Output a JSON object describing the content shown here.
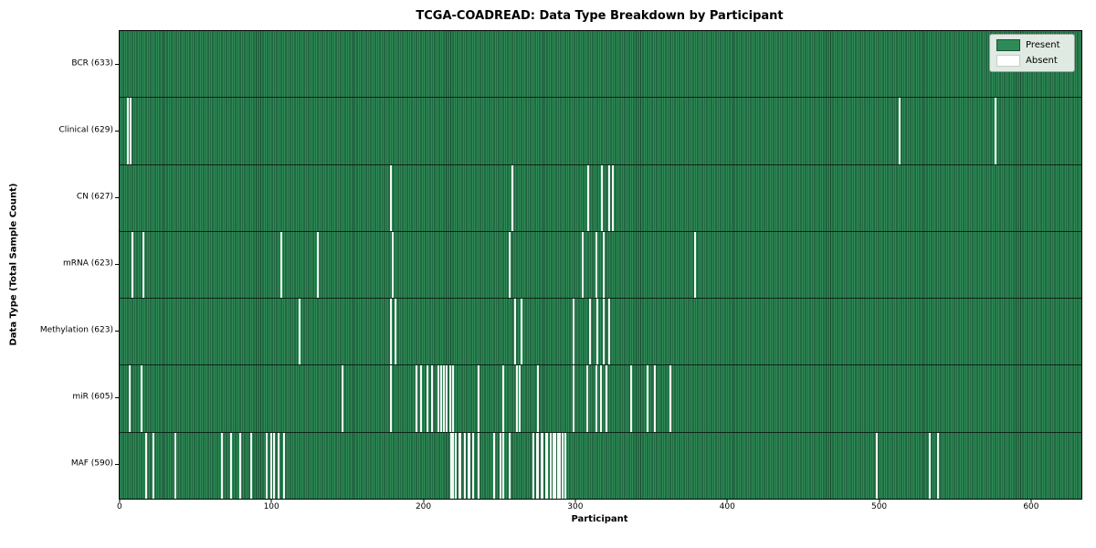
{
  "title": "TCGA-COADREAD: Data Type Breakdown by Participant",
  "legend": {
    "items": [
      {
        "label": "Present",
        "color": "#2e8b57"
      },
      {
        "label": "Absent",
        "color": "#ffffff"
      }
    ],
    "position": "upper right"
  },
  "chart_data": {
    "type": "heatmap",
    "title": "TCGA-COADREAD: Data Type Breakdown by Participant",
    "xlabel": "Participant",
    "ylabel": "Data Type (Total Sample Count)",
    "x_ticks": [
      0,
      100,
      200,
      300,
      400,
      500,
      600
    ],
    "n_participants": 633,
    "grid": false,
    "colors": {
      "present": "#2e8b57",
      "present_edge": "#17472c",
      "absent": "#f7f7f7"
    },
    "rows": [
      {
        "label": "BCR (633)",
        "data_type": "BCR",
        "total_sample_count": 633,
        "absent_participants": []
      },
      {
        "label": "Clinical (629)",
        "data_type": "Clinical",
        "total_sample_count": 629,
        "absent_participants": [
          5,
          7,
          513,
          576
        ]
      },
      {
        "label": "CN (627)",
        "data_type": "CN",
        "total_sample_count": 627,
        "absent_participants": [
          178,
          258,
          308,
          317,
          322,
          324
        ]
      },
      {
        "label": "mRNA (623)",
        "data_type": "mRNA",
        "total_sample_count": 623,
        "absent_participants": [
          8,
          15,
          106,
          130,
          179,
          256,
          304,
          313,
          318,
          378
        ]
      },
      {
        "label": "Methylation (623)",
        "data_type": "Methylation",
        "total_sample_count": 623,
        "absent_participants": [
          118,
          178,
          181,
          260,
          264,
          298,
          309,
          314,
          318,
          322
        ]
      },
      {
        "label": "miR (605)",
        "data_type": "miR",
        "total_sample_count": 605,
        "absent_participants": [
          6,
          14,
          146,
          178,
          195,
          198,
          202,
          205,
          209,
          211,
          213,
          215,
          217,
          219,
          236,
          252,
          261,
          263,
          275,
          298,
          307,
          313,
          316,
          320,
          336,
          347,
          352,
          362
        ]
      },
      {
        "label": "MAF (590)",
        "data_type": "MAF",
        "total_sample_count": 590,
        "absent_participants": [
          17,
          22,
          36,
          67,
          73,
          79,
          86,
          96,
          99,
          101,
          104,
          108,
          218,
          219,
          221,
          223,
          224,
          227,
          229,
          230,
          232,
          236,
          246,
          250,
          252,
          256,
          272,
          274,
          275,
          277,
          278,
          280,
          281,
          283,
          285,
          286,
          288,
          289,
          291,
          293,
          498,
          533,
          538
        ]
      }
    ]
  }
}
